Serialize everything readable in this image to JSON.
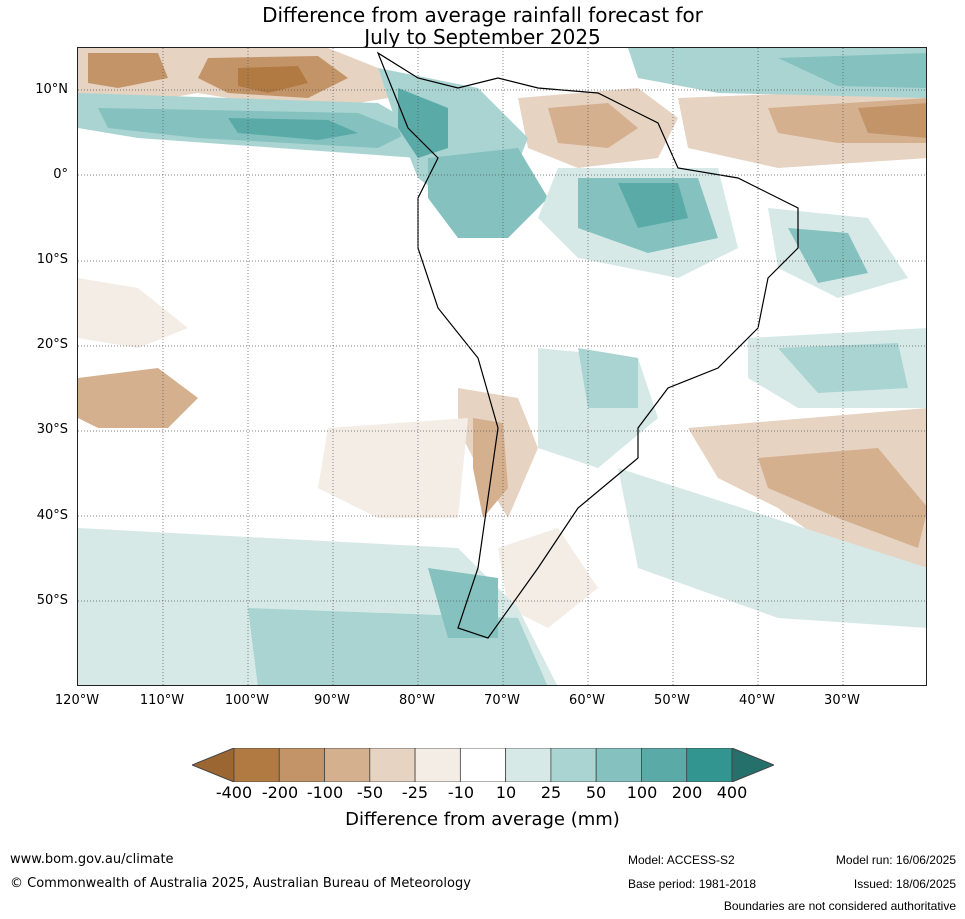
{
  "title_line1": "Difference from average rainfall forecast for",
  "title_line2": "July to September 2025",
  "latitude_labels": [
    "10°N",
    "0°",
    "10°S",
    "20°S",
    "30°S",
    "40°S",
    "50°S"
  ],
  "longitude_labels": [
    "120°W",
    "110°W",
    "100°W",
    "90°W",
    "80°W",
    "70°W",
    "60°W",
    "50°W",
    "40°W",
    "30°W"
  ],
  "colorbar": {
    "ticks": [
      "-400",
      "-200",
      "-100",
      "-50",
      "-25",
      "-10",
      "10",
      "25",
      "50",
      "100",
      "200",
      "400"
    ],
    "colors": [
      "#9c6633",
      "#b07a42",
      "#c49469",
      "#d4b08f",
      "#e6d3c2",
      "#f3ede6",
      "#ffffff",
      "#d6e9e7",
      "#a9d4d2",
      "#84c1bf",
      "#5aaba8",
      "#32958f",
      "#26706c"
    ],
    "label": "Difference from average (mm)"
  },
  "footer": {
    "website": "www.bom.gov.au/climate",
    "copyright": "© Commonwealth of Australia 2025, Australian Bureau of Meteorology",
    "model": "Model: ACCESS-S2",
    "base_period": "Base period: 1981-2018",
    "model_run": "Model run: 16/06/2025",
    "issued": "Issued: 18/06/2025",
    "boundaries_note": "Boundaries are not considered authoritative"
  }
}
